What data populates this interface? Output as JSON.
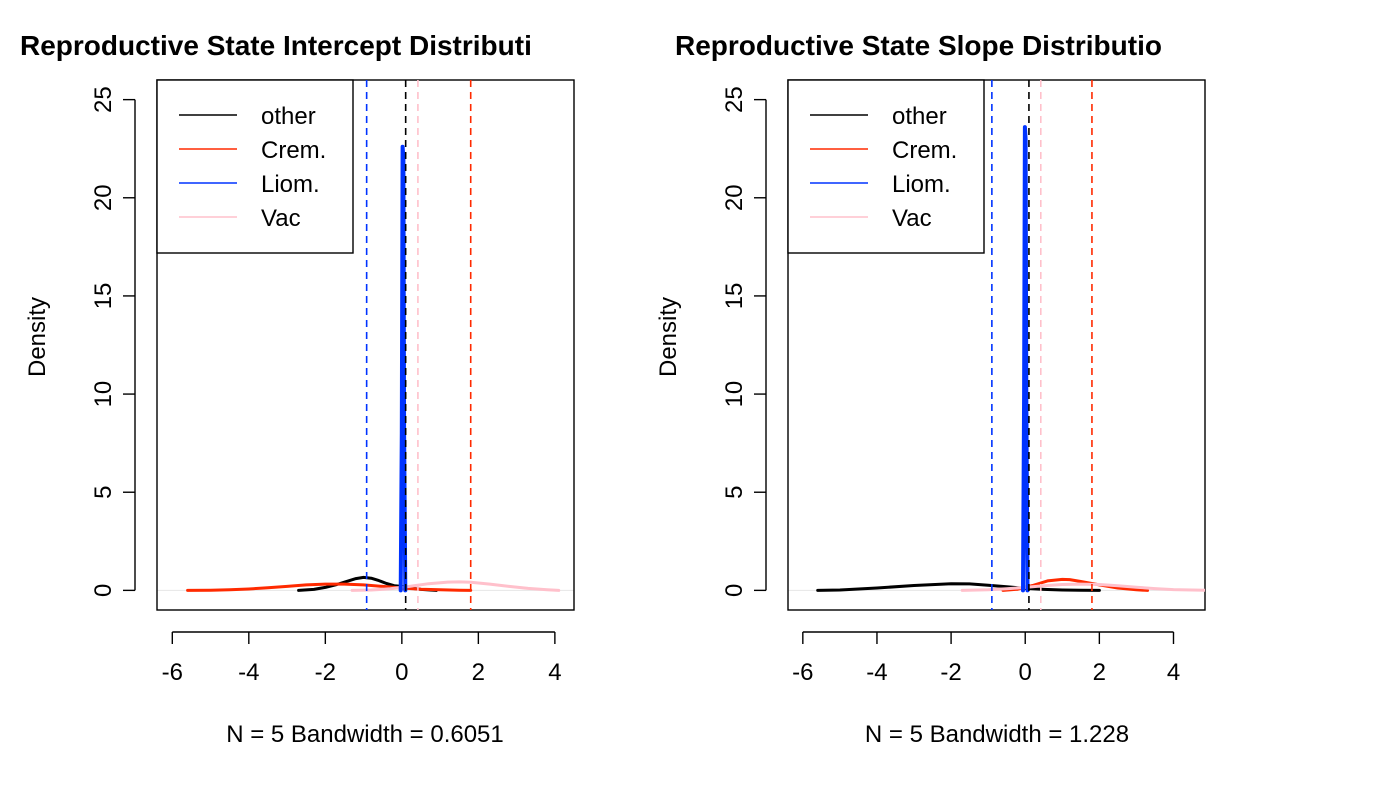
{
  "chart_data": [
    {
      "type": "line",
      "title": "Reproductive State Intercept Distributi",
      "xlabel": "N = 5   Bandwidth = 0.6051",
      "ylabel": "Density",
      "xlim": [
        -6.4,
        4.5
      ],
      "ylim": [
        -1.0,
        26.0
      ],
      "x_ticks": [
        "-6",
        "-4",
        "-2",
        "0",
        "2",
        "4"
      ],
      "y_ticks": [
        "0",
        "5",
        "10",
        "15",
        "20",
        "25"
      ],
      "legend": {
        "position": "top-left",
        "entries": [
          "other",
          "Crem.",
          "Liom.",
          "Vac"
        ]
      },
      "series": [
        {
          "name": "other",
          "color": "#000000",
          "x": [
            -2.7,
            -2.3,
            -2.0,
            -1.7,
            -1.4,
            -1.2,
            -1.0,
            -0.8,
            -0.6,
            -0.4,
            -0.2,
            0.0,
            0.2,
            0.5,
            0.9
          ],
          "y": [
            0.0,
            0.05,
            0.15,
            0.3,
            0.48,
            0.6,
            0.66,
            0.62,
            0.5,
            0.35,
            0.24,
            0.2,
            0.12,
            0.05,
            0.0
          ]
        },
        {
          "name": "Crem.",
          "color": "#ff2a00",
          "x": [
            -5.6,
            -5.0,
            -4.5,
            -4.0,
            -3.5,
            -3.0,
            -2.5,
            -2.0,
            -1.5,
            -1.0,
            -0.5,
            0.0,
            0.5,
            1.0,
            1.5,
            1.8
          ],
          "y": [
            0.0,
            0.01,
            0.03,
            0.07,
            0.13,
            0.2,
            0.28,
            0.32,
            0.32,
            0.28,
            0.2,
            0.12,
            0.06,
            0.03,
            0.01,
            0.0
          ]
        },
        {
          "name": "Liom.",
          "color": "#0033ff",
          "x": [
            -0.03,
            0.0,
            0.02,
            0.04,
            0.06,
            0.09
          ],
          "y": [
            0.0,
            8.0,
            22.6,
            22.0,
            8.0,
            0.0
          ]
        },
        {
          "name": "Vac",
          "color": "#ffc0cb",
          "x": [
            -1.3,
            -0.8,
            -0.3,
            0.2,
            0.7,
            1.2,
            1.5,
            1.8,
            2.3,
            2.8,
            3.3,
            3.8,
            4.1
          ],
          "y": [
            0.0,
            0.02,
            0.08,
            0.2,
            0.34,
            0.42,
            0.43,
            0.41,
            0.32,
            0.2,
            0.1,
            0.03,
            0.0
          ]
        }
      ],
      "vlines": [
        {
          "x": -0.92,
          "color": "#0033ff",
          "style": "dashed"
        },
        {
          "x": 0.1,
          "color": "#000000",
          "style": "dashed"
        },
        {
          "x": 0.42,
          "color": "#ffc0cb",
          "style": "dashed"
        },
        {
          "x": 1.8,
          "color": "#ff2a00",
          "style": "dashed"
        }
      ]
    },
    {
      "type": "line",
      "title": "Reproductive State Slope Distributio",
      "xlabel": "N = 5   Bandwidth = 1.228",
      "ylabel": "Density",
      "xlim": [
        -6.4,
        4.85
      ],
      "ylim": [
        -1.0,
        26.0
      ],
      "x_ticks": [
        "-6",
        "-4",
        "-2",
        "0",
        "2",
        "4"
      ],
      "y_ticks": [
        "0",
        "5",
        "10",
        "15",
        "20",
        "25"
      ],
      "legend": {
        "position": "top-left",
        "entries": [
          "other",
          "Crem.",
          "Liom.",
          "Vac"
        ]
      },
      "series": [
        {
          "name": "other",
          "color": "#000000",
          "x": [
            -5.6,
            -5.0,
            -4.0,
            -3.0,
            -2.0,
            -1.5,
            -1.0,
            -0.5,
            0.0,
            0.5,
            1.0,
            1.5,
            2.0
          ],
          "y": [
            0.0,
            0.02,
            0.12,
            0.25,
            0.34,
            0.33,
            0.26,
            0.18,
            0.1,
            0.05,
            0.02,
            0.01,
            0.0
          ]
        },
        {
          "name": "Crem.",
          "color": "#ff2a00",
          "x": [
            -0.6,
            -0.2,
            0.2,
            0.6,
            1.0,
            1.2,
            1.5,
            2.0,
            2.5,
            3.0,
            3.3
          ],
          "y": [
            0.0,
            0.06,
            0.25,
            0.48,
            0.56,
            0.55,
            0.45,
            0.28,
            0.12,
            0.03,
            0.0
          ]
        },
        {
          "name": "Liom.",
          "color": "#0033ff",
          "x": [
            -0.06,
            -0.03,
            -0.01,
            0.01,
            0.03,
            0.06
          ],
          "y": [
            0.0,
            10.0,
            23.6,
            23.0,
            10.0,
            0.0
          ]
        },
        {
          "name": "Vac",
          "color": "#ffc0cb",
          "x": [
            -1.7,
            -1.0,
            -0.5,
            0.0,
            0.5,
            1.0,
            1.5,
            2.0,
            2.5,
            3.0,
            3.5,
            4.0,
            4.85
          ],
          "y": [
            0.0,
            0.03,
            0.08,
            0.15,
            0.24,
            0.3,
            0.32,
            0.3,
            0.24,
            0.16,
            0.09,
            0.04,
            0.01
          ]
        }
      ],
      "vlines": [
        {
          "x": -0.9,
          "color": "#0033ff",
          "style": "dashed"
        },
        {
          "x": 0.1,
          "color": "#000000",
          "style": "dashed"
        },
        {
          "x": 0.42,
          "color": "#ffc0cb",
          "style": "dashed"
        },
        {
          "x": 1.8,
          "color": "#ff2a00",
          "style": "dashed"
        }
      ]
    }
  ]
}
